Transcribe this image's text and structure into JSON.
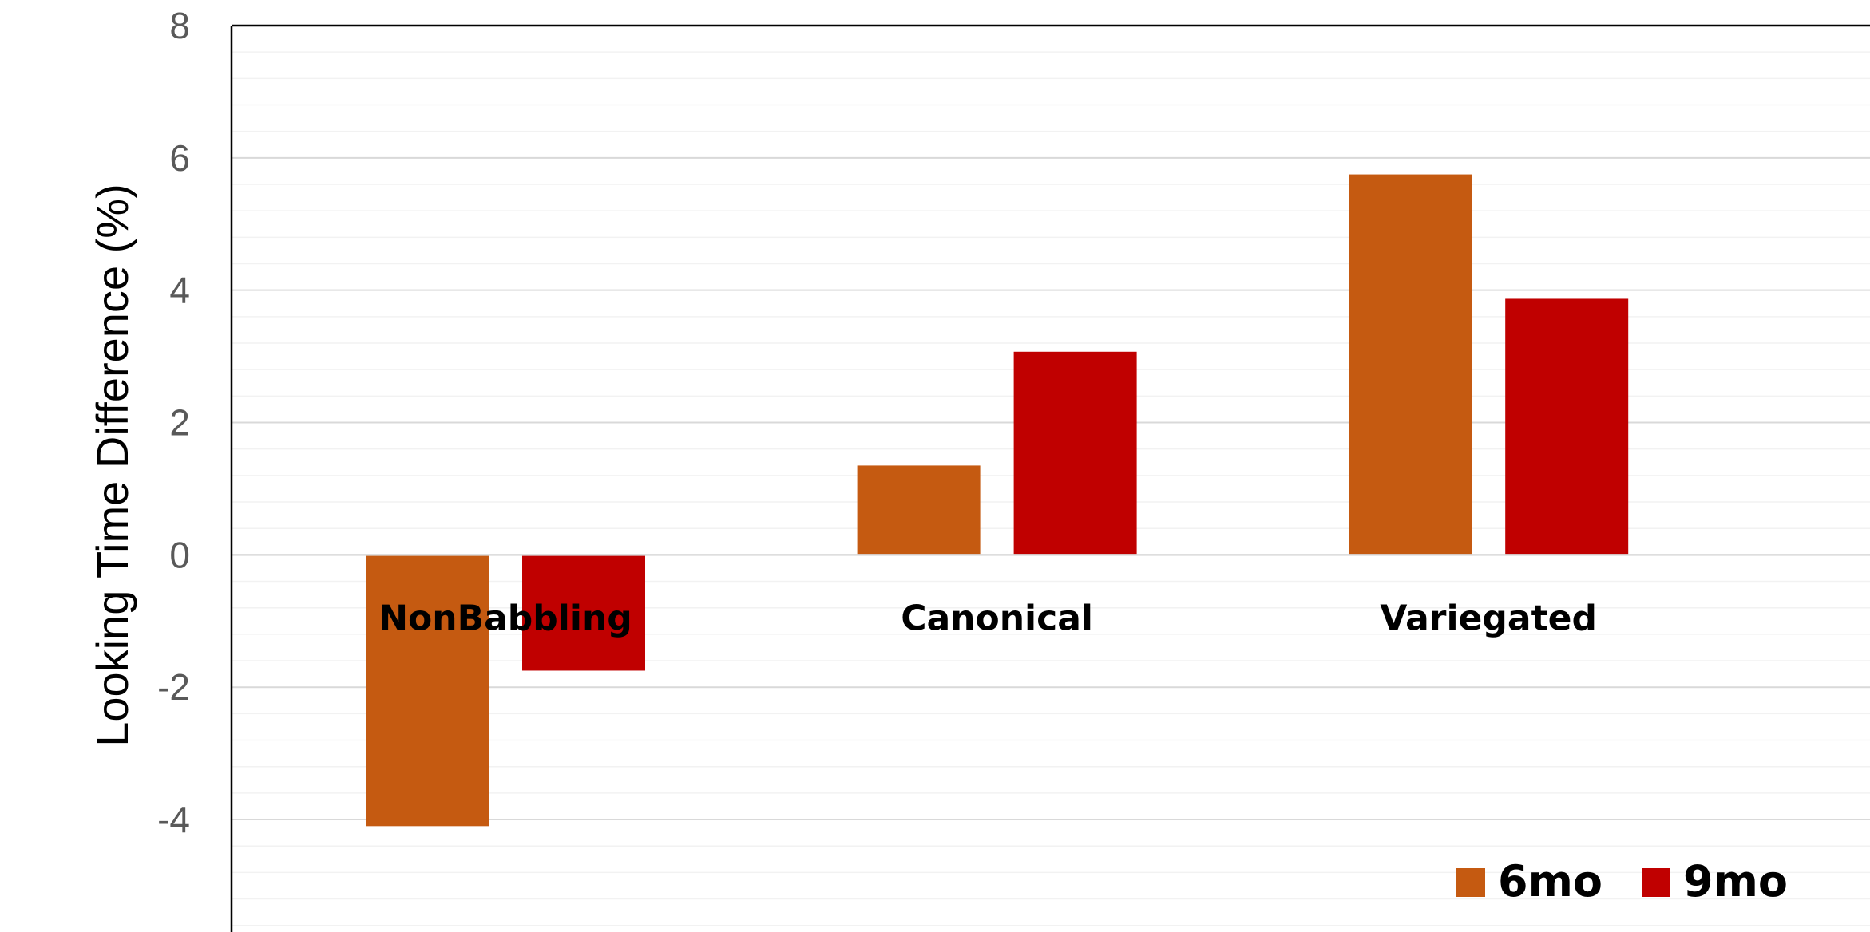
{
  "chart_data": {
    "type": "bar",
    "title": "",
    "xlabel": "",
    "ylabel": "Looking Time Difference (%)",
    "categories": [
      "NonBabbling",
      "Canonical",
      "Variegated"
    ],
    "series": [
      {
        "name": "6mo",
        "color": "#C55A11",
        "values": [
          -4.1,
          1.35,
          5.75
        ]
      },
      {
        "name": "9mo",
        "color": "#C00000",
        "values": [
          -1.75,
          3.07,
          3.87
        ]
      }
    ],
    "ylim": [
      -5.7,
      8
    ],
    "yticks": [
      {
        "value": 8,
        "label": "8"
      },
      {
        "value": 6,
        "label": "6"
      },
      {
        "value": 4,
        "label": "4"
      },
      {
        "value": 2,
        "label": "2"
      },
      {
        "value": 0,
        "label": "0"
      },
      {
        "value": -2,
        "label": "-2"
      },
      {
        "value": -4,
        "label": "-4"
      }
    ],
    "major_grid_step": 2,
    "minor_grid_step": 0.4,
    "grid": true,
    "legend_position": "bottom-right",
    "colors": {
      "axis": "#000000",
      "major_grid": "#D9D9D9",
      "minor_grid": "#F2F2F2",
      "tick_text": "#595959"
    }
  }
}
